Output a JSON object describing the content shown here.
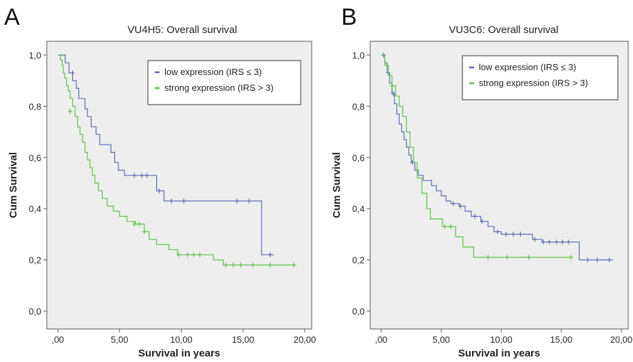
{
  "panels": [
    {
      "letter": "A"
    },
    {
      "letter": "B"
    }
  ],
  "colors": {
    "low": "#5a6bb0",
    "strong": "#5cbf4a",
    "plot_bg": "#eeeeee"
  },
  "chart_data": [
    {
      "type": "line",
      "title": "VU4H5: Overall survival",
      "xlabel": "Survival in years",
      "ylabel": "Cum Survival",
      "xlim": [
        0,
        20
      ],
      "ylim": [
        0,
        1
      ],
      "xticks": [
        ",00",
        "5,00",
        "10,00",
        "15,00",
        "20,00"
      ],
      "xtick_values": [
        0,
        5,
        10,
        15,
        20
      ],
      "yticks": [
        "0,0",
        "0,2",
        "0,4",
        "0,6",
        "0,8",
        "1,0"
      ],
      "ytick_values": [
        0,
        0.2,
        0.4,
        0.6,
        0.8,
        1.0
      ],
      "grid": false,
      "legend_position": "top-right",
      "series": [
        {
          "name": "low expression (IRS ≤ 3)",
          "color_key": "low",
          "steps": [
            [
              0,
              1.0
            ],
            [
              0.6,
              0.97
            ],
            [
              0.9,
              0.93
            ],
            [
              1.2,
              0.9
            ],
            [
              1.5,
              0.87
            ],
            [
              1.7,
              0.83
            ],
            [
              2.2,
              0.79
            ],
            [
              2.4,
              0.76
            ],
            [
              2.7,
              0.72
            ],
            [
              3.1,
              0.69
            ],
            [
              3.4,
              0.65
            ],
            [
              4.3,
              0.62
            ],
            [
              4.6,
              0.58
            ],
            [
              4.9,
              0.55
            ],
            [
              5.4,
              0.53
            ],
            [
              8.0,
              0.47
            ],
            [
              8.6,
              0.43
            ],
            [
              16.5,
              0.22
            ],
            [
              17.5,
              0.22
            ]
          ],
          "censored": [
            [
              1.2,
              0.93
            ],
            [
              6.2,
              0.53
            ],
            [
              6.8,
              0.53
            ],
            [
              7.2,
              0.53
            ],
            [
              8.2,
              0.47
            ],
            [
              9.2,
              0.43
            ],
            [
              10.2,
              0.43
            ],
            [
              14.5,
              0.43
            ],
            [
              15.5,
              0.43
            ],
            [
              17.2,
              0.22
            ]
          ]
        },
        {
          "name": "strong expression (IRS > 3)",
          "color_key": "strong",
          "steps": [
            [
              0,
              1.0
            ],
            [
              0.2,
              0.98
            ],
            [
              0.35,
              0.96
            ],
            [
              0.45,
              0.93
            ],
            [
              0.55,
              0.91
            ],
            [
              0.7,
              0.88
            ],
            [
              0.85,
              0.86
            ],
            [
              1.0,
              0.83
            ],
            [
              1.2,
              0.8
            ],
            [
              1.4,
              0.76
            ],
            [
              1.6,
              0.72
            ],
            [
              1.8,
              0.69
            ],
            [
              2.0,
              0.66
            ],
            [
              2.2,
              0.62
            ],
            [
              2.4,
              0.59
            ],
            [
              2.6,
              0.56
            ],
            [
              2.8,
              0.53
            ],
            [
              3.0,
              0.5
            ],
            [
              3.3,
              0.47
            ],
            [
              3.6,
              0.44
            ],
            [
              4.0,
              0.41
            ],
            [
              4.5,
              0.39
            ],
            [
              5.0,
              0.37
            ],
            [
              5.6,
              0.35
            ],
            [
              6.3,
              0.34
            ],
            [
              7.0,
              0.31
            ],
            [
              7.4,
              0.28
            ],
            [
              8.0,
              0.26
            ],
            [
              9.0,
              0.24
            ],
            [
              9.7,
              0.22
            ],
            [
              12.6,
              0.2
            ],
            [
              13.4,
              0.18
            ],
            [
              19.3,
              0.18
            ]
          ],
          "censored": [
            [
              1.0,
              0.78
            ],
            [
              6.2,
              0.34
            ],
            [
              6.6,
              0.34
            ],
            [
              7.0,
              0.31
            ],
            [
              9.8,
              0.22
            ],
            [
              10.5,
              0.22
            ],
            [
              11.0,
              0.22
            ],
            [
              11.5,
              0.22
            ],
            [
              13.6,
              0.18
            ],
            [
              14.2,
              0.18
            ],
            [
              14.8,
              0.18
            ],
            [
              15.8,
              0.18
            ],
            [
              17.2,
              0.18
            ],
            [
              19.1,
              0.18
            ]
          ]
        }
      ]
    },
    {
      "type": "line",
      "title": "VU3C6: Overall survival",
      "xlabel": "Survival in years",
      "ylabel": "Cum Survival",
      "xlim": [
        0,
        20
      ],
      "ylim": [
        0,
        1
      ],
      "xticks": [
        ",00",
        "5,00",
        "10,00",
        "15,00",
        "20,00"
      ],
      "xtick_values": [
        0,
        5,
        10,
        15,
        20
      ],
      "yticks": [
        "0,0",
        "0,2",
        "0,4",
        "0,6",
        "0,8",
        "1,0"
      ],
      "ytick_values": [
        0,
        0.2,
        0.4,
        0.6,
        0.8,
        1.0
      ],
      "grid": false,
      "legend_position": "top-right",
      "series": [
        {
          "name": "low expression (IRS ≤ 3)",
          "color_key": "low",
          "steps": [
            [
              0,
              1.0
            ],
            [
              0.3,
              0.97
            ],
            [
              0.5,
              0.93
            ],
            [
              0.7,
              0.89
            ],
            [
              0.9,
              0.85
            ],
            [
              1.1,
              0.81
            ],
            [
              1.3,
              0.77
            ],
            [
              1.5,
              0.73
            ],
            [
              1.7,
              0.7
            ],
            [
              1.9,
              0.67
            ],
            [
              2.1,
              0.64
            ],
            [
              2.3,
              0.61
            ],
            [
              2.5,
              0.58
            ],
            [
              2.8,
              0.55
            ],
            [
              3.1,
              0.53
            ],
            [
              3.5,
              0.51
            ],
            [
              4.2,
              0.49
            ],
            [
              4.6,
              0.47
            ],
            [
              5.0,
              0.45
            ],
            [
              5.4,
              0.43
            ],
            [
              5.8,
              0.42
            ],
            [
              6.5,
              0.41
            ],
            [
              7.0,
              0.39
            ],
            [
              7.5,
              0.37
            ],
            [
              8.3,
              0.35
            ],
            [
              8.9,
              0.33
            ],
            [
              9.4,
              0.31
            ],
            [
              10.0,
              0.3
            ],
            [
              12.6,
              0.28
            ],
            [
              13.4,
              0.27
            ],
            [
              16.5,
              0.2
            ],
            [
              19.3,
              0.2
            ]
          ],
          "censored": [
            [
              0.2,
              1.0
            ],
            [
              0.6,
              0.93
            ],
            [
              1.0,
              0.85
            ],
            [
              2.6,
              0.58
            ],
            [
              6.0,
              0.42
            ],
            [
              6.6,
              0.41
            ],
            [
              7.8,
              0.37
            ],
            [
              8.4,
              0.35
            ],
            [
              9.7,
              0.31
            ],
            [
              10.4,
              0.3
            ],
            [
              11.0,
              0.3
            ],
            [
              11.6,
              0.3
            ],
            [
              12.8,
              0.28
            ],
            [
              13.5,
              0.27
            ],
            [
              14.0,
              0.27
            ],
            [
              14.6,
              0.27
            ],
            [
              15.1,
              0.27
            ],
            [
              15.6,
              0.27
            ],
            [
              17.2,
              0.2
            ],
            [
              18.0,
              0.2
            ],
            [
              19.0,
              0.2
            ]
          ]
        },
        {
          "name": "strong expression (IRS > 3)",
          "color_key": "strong",
          "steps": [
            [
              0,
              1.0
            ],
            [
              0.3,
              0.96
            ],
            [
              0.6,
              0.92
            ],
            [
              0.9,
              0.88
            ],
            [
              1.2,
              0.84
            ],
            [
              1.5,
              0.8
            ],
            [
              1.8,
              0.76
            ],
            [
              2.1,
              0.7
            ],
            [
              2.4,
              0.64
            ],
            [
              2.7,
              0.58
            ],
            [
              3.0,
              0.52
            ],
            [
              3.4,
              0.46
            ],
            [
              3.8,
              0.4
            ],
            [
              4.1,
              0.36
            ],
            [
              5.1,
              0.33
            ],
            [
              6.2,
              0.29
            ],
            [
              6.8,
              0.25
            ],
            [
              7.7,
              0.21
            ],
            [
              16.0,
              0.21
            ]
          ],
          "censored": [
            [
              0.9,
              0.88
            ],
            [
              5.3,
              0.33
            ],
            [
              5.8,
              0.33
            ],
            [
              8.9,
              0.21
            ],
            [
              10.5,
              0.21
            ],
            [
              12.3,
              0.21
            ],
            [
              15.8,
              0.21
            ]
          ]
        }
      ]
    }
  ]
}
